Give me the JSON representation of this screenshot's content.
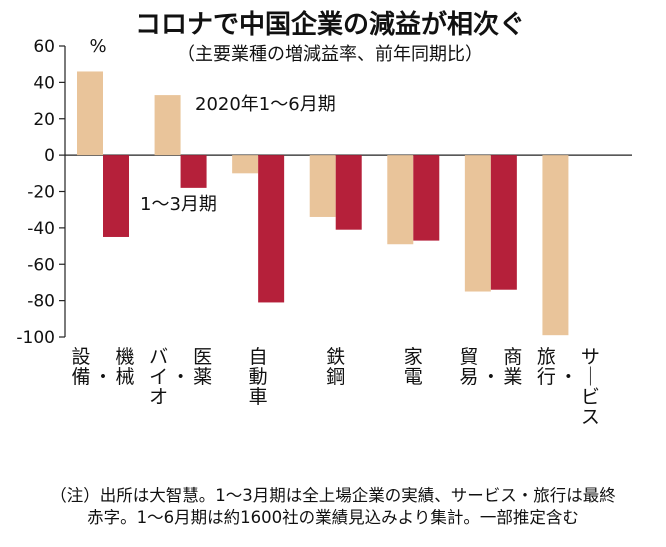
{
  "chart_data": {
    "type": "bar",
    "title": "コロナで中国企業の減益が相次ぐ",
    "subtitle": "（主要業種の増減益率、前年同期比）",
    "ylabel": "%",
    "ylim": [
      -100,
      60
    ],
    "yticks": [
      60,
      40,
      20,
      0,
      -20,
      -40,
      -60,
      -80,
      -100
    ],
    "categories": [
      [
        "機械",
        "・",
        "設備"
      ],
      [
        "医薬",
        "・",
        "バイオ"
      ],
      [
        "自動車"
      ],
      [
        "鉄鋼"
      ],
      [
        "家電"
      ],
      [
        "商業",
        "・",
        "貿易"
      ],
      [
        "サービス",
        "・",
        "旅行"
      ]
    ],
    "series": [
      {
        "name": "2020年1〜6月期",
        "color": "#e9c49a",
        "values": [
          46,
          33,
          -10,
          -34,
          -49,
          -75,
          -99
        ]
      },
      {
        "name": "1〜3月期",
        "color": "#b5203a",
        "values": [
          -45,
          -18,
          -81,
          -41,
          -47,
          -74,
          null
        ]
      }
    ]
  },
  "notes": {
    "line1": "（注）出所は大智慧。1〜3月期は全上場企業の実績、サービス・旅行は最終",
    "line2": "赤字。1〜6月期は約1600社の業績見込みより集計。一部推定含む"
  }
}
